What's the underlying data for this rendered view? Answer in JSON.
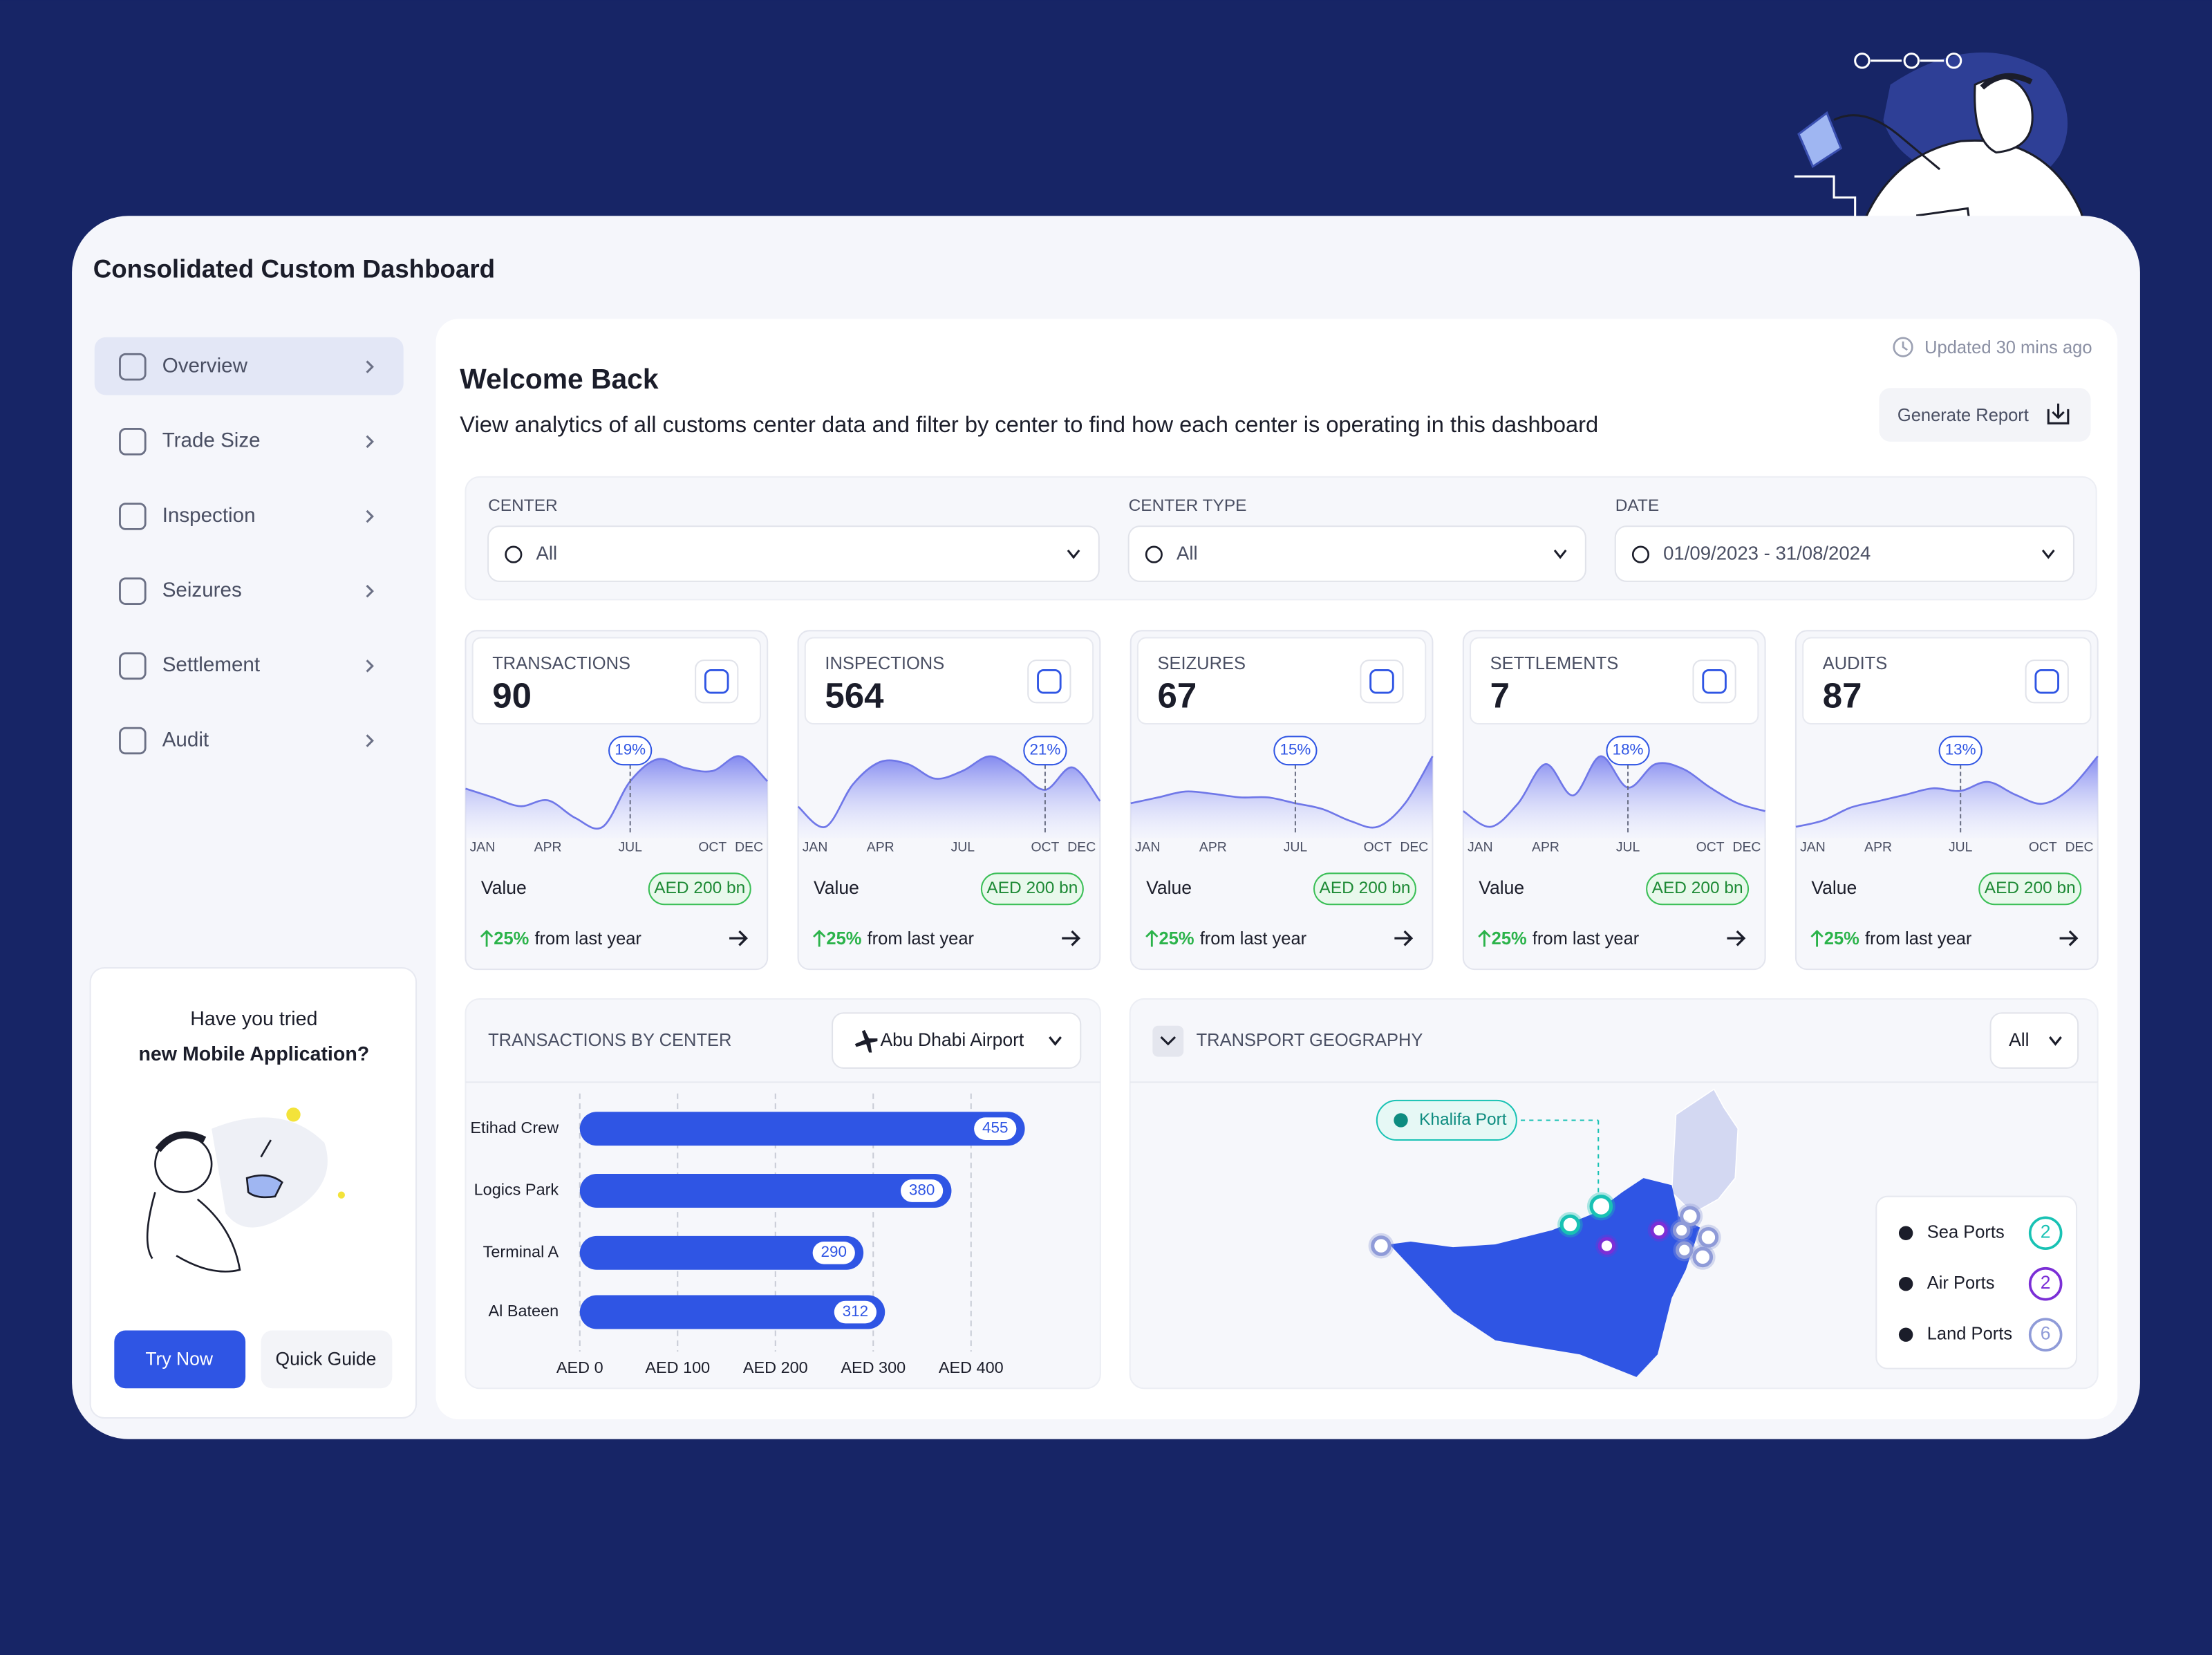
{
  "header": {
    "title": "Consolidated Custom Dashboard"
  },
  "sidebar": {
    "items": [
      "Overview",
      "Trade Size",
      "Inspection",
      "Seizures",
      "Settlement",
      "Audit"
    ]
  },
  "promo": {
    "line1": "Have you tried",
    "line2": "new Mobile Application?",
    "primary_button": "Try Now",
    "secondary_button": "Quick Guide"
  },
  "main": {
    "updated": "Updated 30 mins ago",
    "title": "Welcome Back",
    "subtitle": "View analytics of all customs center data and filter by center to find how each center is operating in this dashboard",
    "generate_report": "Generate Report"
  },
  "filters": [
    {
      "label": "CENTER",
      "value": "All"
    },
    {
      "label": "CENTER TYPE",
      "value": "All"
    },
    {
      "label": "DATE",
      "value": "01/09/2023 - 31/08/2024"
    }
  ],
  "kpis": {
    "months": [
      "JAN",
      null,
      null,
      "APR",
      null,
      null,
      "JUL",
      null,
      null,
      "OCT",
      null,
      "DEC"
    ],
    "cards": [
      {
        "label": "TRANSACTIONS",
        "value": 90,
        "trend": [
          50,
          44,
          38,
          42,
          30,
          24,
          55,
          70,
          64,
          62,
          72,
          55
        ],
        "badge": "19%",
        "value_label": "Value",
        "amount": "AED 200 bn",
        "change": "25%",
        "change_text": "from last year"
      },
      {
        "label": "INSPECTIONS",
        "value": 564,
        "trend": [
          40,
          22,
          60,
          80,
          78,
          65,
          72,
          85,
          72,
          55,
          75,
          45
        ],
        "badge": "21%",
        "value_label": "Value",
        "amount": "AED 200 bn",
        "change": "25%",
        "change_text": "from last year"
      },
      {
        "label": "SEIZURES",
        "value": 67,
        "trend": [
          50,
          55,
          60,
          58,
          55,
          55,
          50,
          45,
          35,
          30,
          50,
          90
        ],
        "badge": "15%",
        "value_label": "Value",
        "amount": "AED 200 bn",
        "change": "25%",
        "change_text": "from last year"
      },
      {
        "label": "SETTLEMENTS",
        "value": 7,
        "trend": [
          45,
          35,
          50,
          75,
          55,
          80,
          60,
          75,
          72,
          60,
          50,
          45
        ],
        "badge": "18%",
        "value_label": "Value",
        "amount": "AED 200 bn",
        "change": "25%",
        "change_text": "from last year"
      },
      {
        "label": "AUDITS",
        "value": 87,
        "trend": [
          30,
          35,
          45,
          50,
          55,
          60,
          58,
          65,
          55,
          48,
          60,
          85
        ],
        "badge": "13%",
        "value_label": "Value",
        "amount": "AED 200 bn",
        "change": "25%",
        "change_text": "from last year"
      }
    ]
  },
  "transactions_by_center": {
    "type": "bar",
    "title": "TRANSACTIONS BY CENTER",
    "dropdown": "Abu Dhabi Airport",
    "categories": [
      "Etihad Crew",
      "Logics Park",
      "Terminal A",
      "Al Bateen"
    ],
    "values": [
      455,
      380,
      290,
      312
    ],
    "color": "#2f55e4",
    "xlim": [
      0,
      450
    ],
    "xticks": [
      {
        "value": 0,
        "label": "AED 0"
      },
      {
        "value": 100,
        "label": "AED 100"
      },
      {
        "value": 200,
        "label": "AED 200"
      },
      {
        "value": 300,
        "label": "AED 300"
      },
      {
        "value": 400,
        "label": "AED 400"
      }
    ],
    "grid": true
  },
  "transport_geography": {
    "title": "TRANSPORT GEOGRAPHY",
    "dropdown": "All",
    "callout": "Khalifa Port",
    "legend": [
      {
        "name": "Sea Ports",
        "count": 2,
        "color": "#19c2b4"
      },
      {
        "name": "Air Ports",
        "count": 2,
        "color": "#7b2fd6"
      },
      {
        "name": "Land Ports",
        "count": 6,
        "color": "#8f9bd8"
      }
    ]
  }
}
